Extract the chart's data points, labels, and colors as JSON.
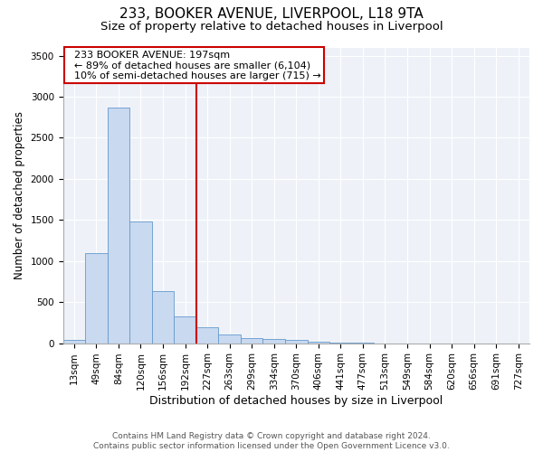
{
  "title1": "233, BOOKER AVENUE, LIVERPOOL, L18 9TA",
  "title2": "Size of property relative to detached houses in Liverpool",
  "xlabel": "Distribution of detached houses by size in Liverpool",
  "ylabel": "Number of detached properties",
  "annotation_line1": "233 BOOKER AVENUE: 197sqm",
  "annotation_line2": "← 89% of detached houses are smaller (6,104)",
  "annotation_line3": "10% of semi-detached houses are larger (715) →",
  "footer_line1": "Contains HM Land Registry data © Crown copyright and database right 2024.",
  "footer_line2": "Contains public sector information licensed under the Open Government Licence v3.0.",
  "categories": [
    "13sqm",
    "49sqm",
    "84sqm",
    "120sqm",
    "156sqm",
    "192sqm",
    "227sqm",
    "263sqm",
    "299sqm",
    "334sqm",
    "370sqm",
    "406sqm",
    "441sqm",
    "477sqm",
    "513sqm",
    "549sqm",
    "584sqm",
    "620sqm",
    "656sqm",
    "691sqm",
    "727sqm"
  ],
  "values": [
    45,
    1100,
    2870,
    1480,
    635,
    330,
    190,
    105,
    65,
    50,
    45,
    20,
    12,
    5,
    0,
    0,
    0,
    0,
    0,
    0,
    0
  ],
  "bar_color": "#c8d9f0",
  "bar_edge_color": "#6699cc",
  "vline_color": "#cc0000",
  "vline_x_index": 5.5,
  "ylim": [
    0,
    3600
  ],
  "yticks": [
    0,
    500,
    1000,
    1500,
    2000,
    2500,
    3000,
    3500
  ],
  "plot_bg_color": "#eef2f8",
  "annotation_box_edge_color": "#cc0000",
  "title1_fontsize": 11,
  "title2_fontsize": 9.5,
  "xlabel_fontsize": 9,
  "ylabel_fontsize": 8.5,
  "tick_fontsize": 7.5,
  "annotation_fontsize": 8,
  "footer_fontsize": 6.5
}
